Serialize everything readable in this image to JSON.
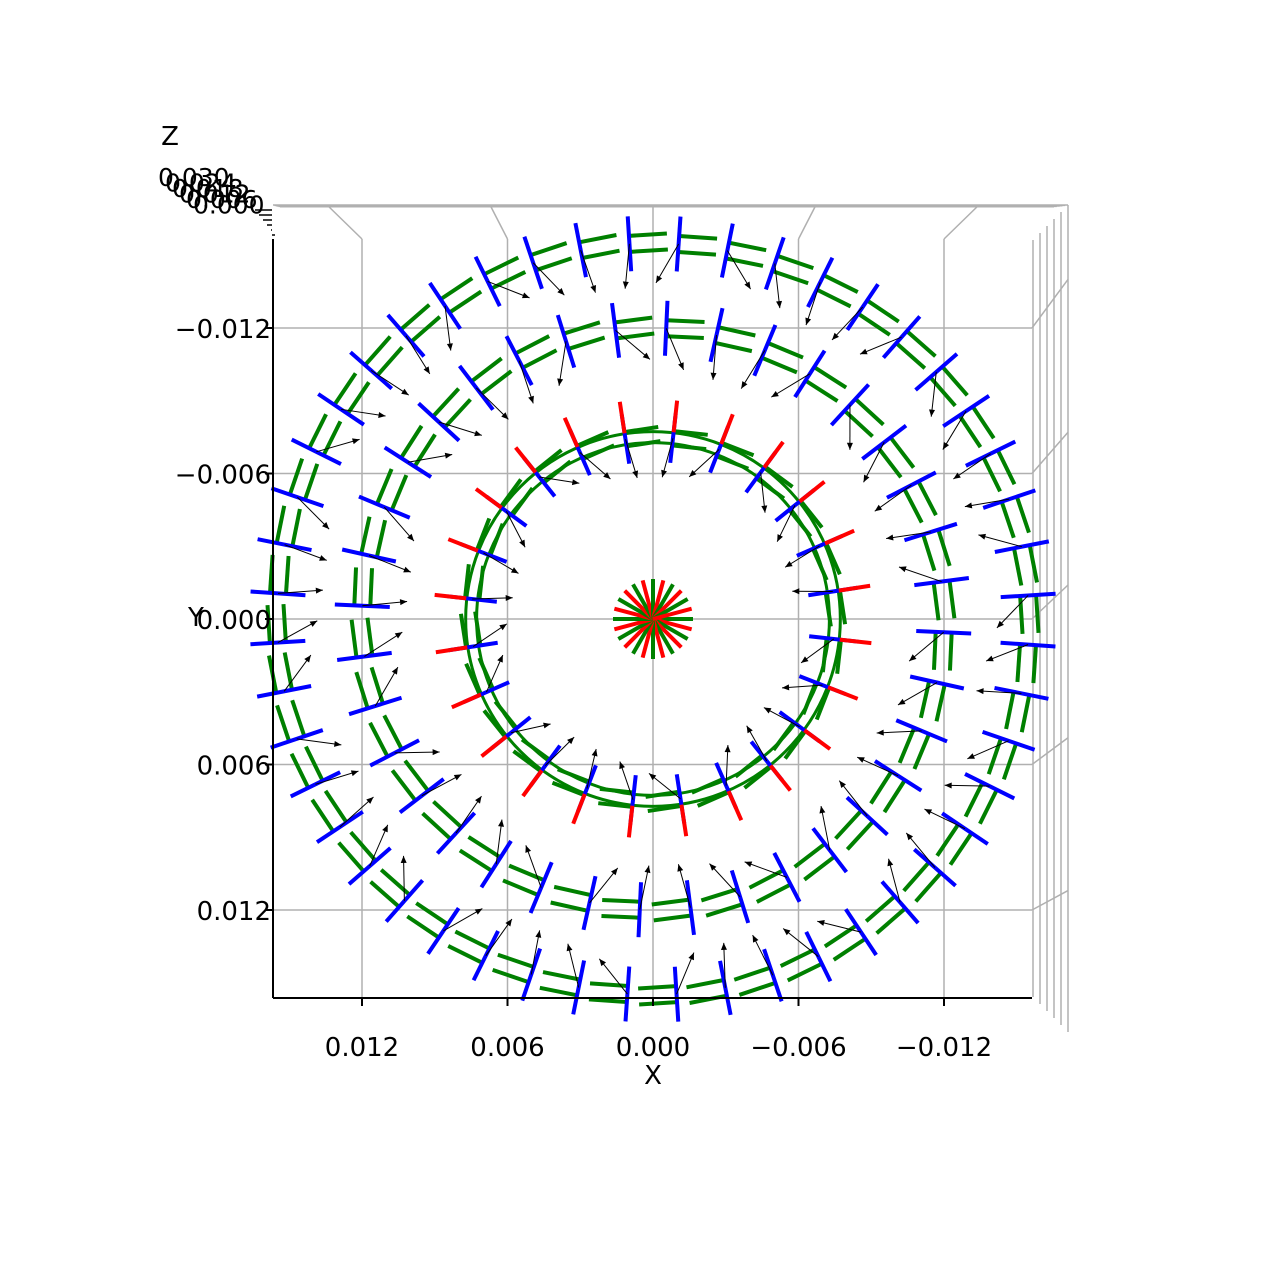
{
  "chart_data": {
    "type": "3d-quiver",
    "view": "top-down",
    "xlabel": "X",
    "ylabel": "Y",
    "zlabel": "Z",
    "x_ticks": [
      "0.012",
      "0.006",
      "0.000",
      "−0.006",
      "−0.012"
    ],
    "y_ticks": [
      "−0.012",
      "−0.006",
      "0.000",
      "0.006",
      "0.012"
    ],
    "z_ticks": [
      "0.030",
      "0.024",
      "0.018",
      "0.012",
      "0.006",
      "0.000"
    ],
    "xlim": [
      0.0156,
      -0.0156
    ],
    "ylim": [
      -0.0156,
      0.0156
    ],
    "grid": true,
    "rings": [
      {
        "name": "center",
        "radius": 0.0,
        "segments": 24
      },
      {
        "name": "inner",
        "radius": 0.0075,
        "segments": 24
      },
      {
        "name": "middle",
        "radius": 0.012,
        "segments": 36
      },
      {
        "name": "outer",
        "radius": 0.0155,
        "segments": 48
      }
    ],
    "frame_colors": {
      "x_axis": "#ff0000",
      "y_axis": "#008000",
      "z_axis": "#0000ff",
      "arrow": "#000000"
    }
  }
}
